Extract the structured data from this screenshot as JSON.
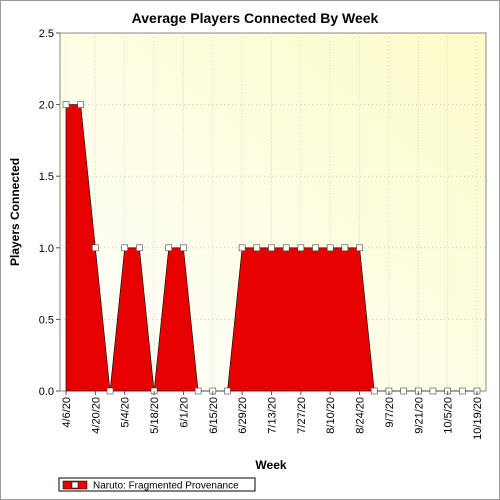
{
  "chart_data": {
    "type": "area",
    "title": "Average Players Connected By Week",
    "xlabel": "Week",
    "ylabel": "Players Connected",
    "ylim": [
      0,
      2.5
    ],
    "yticks": [
      "0.0",
      "0.5",
      "1.0",
      "1.5",
      "2.0",
      "2.5"
    ],
    "x": [
      "4/6/20",
      "4/13/20",
      "4/20/20",
      "4/27/20",
      "5/4/20",
      "5/11/20",
      "5/18/20",
      "5/25/20",
      "6/1/20",
      "6/8/20",
      "6/15/20",
      "6/22/20",
      "6/29/20",
      "7/6/20",
      "7/13/20",
      "7/20/20",
      "7/27/20",
      "8/3/20",
      "8/10/20",
      "8/17/20",
      "8/24/20",
      "8/31/20",
      "9/7/20",
      "9/14/20",
      "9/21/20",
      "9/28/20",
      "10/5/20",
      "10/12/20",
      "10/19/20"
    ],
    "xtick_labels": [
      "4/6/20",
      "4/20/20",
      "5/4/20",
      "5/18/20",
      "6/1/20",
      "6/15/20",
      "6/29/20",
      "7/13/20",
      "7/27/20",
      "8/10/20",
      "8/24/20",
      "9/7/20",
      "9/21/20",
      "10/5/20",
      "10/19/20"
    ],
    "series": [
      {
        "name": "Naruto: Fragmented Provenance",
        "color": "#e60000",
        "values": [
          2,
          2,
          1,
          0,
          1,
          1,
          0,
          1,
          1,
          0,
          0,
          0,
          1,
          1,
          1,
          1,
          1,
          1,
          1,
          1,
          1,
          0,
          0,
          0,
          0,
          0,
          0,
          0,
          0
        ]
      }
    ],
    "grid": true,
    "legend": "bottom-left"
  }
}
